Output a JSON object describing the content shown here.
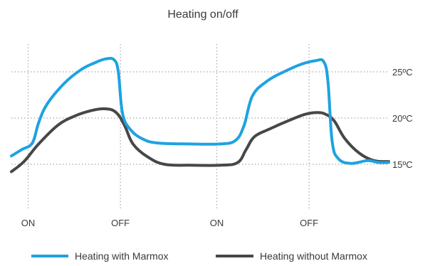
{
  "colors": {
    "background": "#ffffff",
    "grid": "#a8a8a8",
    "text": "#3a3a3a",
    "with_marmox": "#1ea2e0",
    "without_marmox": "#474747"
  },
  "chart_data": {
    "type": "line",
    "title": "Heating on/off",
    "xlabel": "",
    "ylabel": "",
    "x_tick_labels": [
      "ON",
      "OFF",
      "ON",
      "OFF"
    ],
    "x_tick_positions": [
      0.8,
      5.2,
      9.8,
      14.2
    ],
    "xlim": [
      0,
      18
    ],
    "y_tick_labels": [
      "25ºC",
      "20ºC",
      "15ºC"
    ],
    "y_tick_values": [
      25,
      20,
      15
    ],
    "ylim": [
      10,
      28
    ],
    "grid": true,
    "legend_position": "bottom",
    "series": [
      {
        "name": "Heating with Marmox",
        "color_key": "with_marmox",
        "x": [
          0,
          0.5,
          1.0,
          1.3,
          1.7,
          2.5,
          3.3,
          4.0,
          4.5,
          4.9,
          5.1,
          5.3,
          5.7,
          6.3,
          7.0,
          8.5,
          10.0,
          10.7,
          11.1,
          11.5,
          12.2,
          13.0,
          13.8,
          14.5,
          14.9,
          15.1,
          15.3,
          15.6,
          16.2,
          17.0,
          17.5,
          18.0
        ],
        "y": [
          15.9,
          16.6,
          17.3,
          19.5,
          21.5,
          23.7,
          25.2,
          26.0,
          26.4,
          26.3,
          25.0,
          20.5,
          18.7,
          17.7,
          17.3,
          17.2,
          17.2,
          17.6,
          19.2,
          22.4,
          24.0,
          25.0,
          25.8,
          26.2,
          26.1,
          24.0,
          17.5,
          15.6,
          15.1,
          15.4,
          15.2,
          15.2
        ]
      },
      {
        "name": "Heating without Marmox",
        "color_key": "without_marmox",
        "x": [
          0,
          0.6,
          1.3,
          2.2,
          3.0,
          3.8,
          4.5,
          5.0,
          5.4,
          5.8,
          6.5,
          7.3,
          8.5,
          10.0,
          10.8,
          11.2,
          11.6,
          12.3,
          13.2,
          14.0,
          14.6,
          15.0,
          15.4,
          15.9,
          16.6,
          17.3,
          18.0
        ],
        "y": [
          14.2,
          15.3,
          17.2,
          19.2,
          20.2,
          20.8,
          21.0,
          20.6,
          19.2,
          17.2,
          15.8,
          15.0,
          14.9,
          14.9,
          15.2,
          16.6,
          18.0,
          18.8,
          19.7,
          20.4,
          20.6,
          20.4,
          19.7,
          17.8,
          16.2,
          15.4,
          15.3
        ]
      }
    ]
  }
}
